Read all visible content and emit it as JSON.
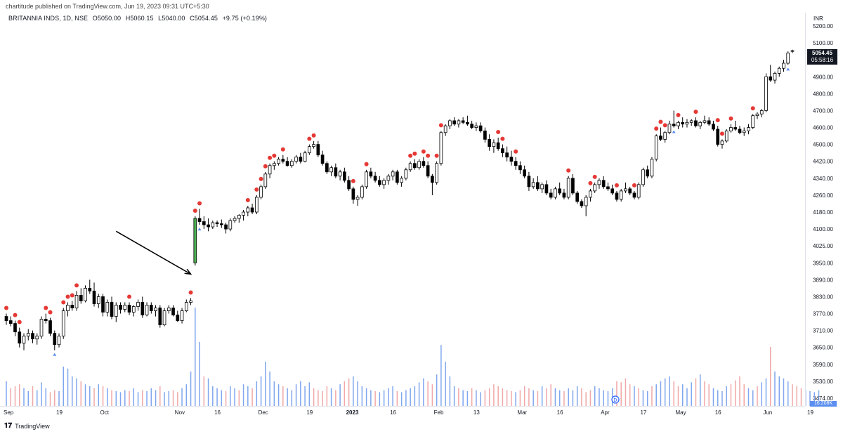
{
  "header": {
    "published": "chartitude published on TradingView.com, Jun 19, 2023 09:31 UTC+5:30",
    "symbol": "BRITANNIA INDS, 1D, NSE",
    "open": "O5050.00",
    "high": "H5060.15",
    "low": "L5040.00",
    "close": "C5054.45",
    "change": "+9.75 (+0.19%)"
  },
  "axis": {
    "currency": "INR",
    "last_price": "5054.45",
    "countdown": "05:58:16",
    "volume_label": "16.208K"
  },
  "event_marker": "D",
  "footer": {
    "brand": "TradingView"
  },
  "colors": {
    "up_body": "#ffffff",
    "down_body": "#000000",
    "highlight": "#4caf50",
    "dot": "#e53935",
    "triangle": "#5b8ef0",
    "vol_up": "#7fa6ee",
    "vol_down": "#f0a8a8"
  },
  "chart_data": {
    "type": "candlestick",
    "title": "",
    "y_ticks": [
      5200.0,
      5100.0,
      5000.0,
      4900.0,
      4800.0,
      4700.0,
      4600.0,
      4500.0,
      4420.0,
      4340.0,
      4260.0,
      4180.0,
      4100.0,
      4025.0,
      3950.0,
      3890.0,
      3830.0,
      3770.0,
      3710.0,
      3650.0,
      3590.0,
      3530.0,
      3474.0
    ],
    "x_ticks": [
      {
        "label": "Sep",
        "i": 0
      },
      {
        "label": "19",
        "i": 12
      },
      {
        "label": "Oct",
        "i": 22
      },
      {
        "label": "Nov",
        "i": 39
      },
      {
        "label": "16",
        "i": 48
      },
      {
        "label": "Dec",
        "i": 58
      },
      {
        "label": "19",
        "i": 69
      },
      {
        "label": "2023",
        "i": 78
      },
      {
        "label": "16",
        "i": 88
      },
      {
        "label": "Feb",
        "i": 98
      },
      {
        "label": "13",
        "i": 107
      },
      {
        "label": "Mar",
        "i": 117
      },
      {
        "label": "16",
        "i": 126
      },
      {
        "label": "Apr",
        "i": 136
      },
      {
        "label": "17",
        "i": 145
      },
      {
        "label": "May",
        "i": 153
      },
      {
        "label": "16",
        "i": 162
      },
      {
        "label": "Jun",
        "i": 173
      },
      {
        "label": "19",
        "i": 183
      }
    ],
    "highlight_index": 43,
    "annotation_arrow": {
      "from_index": 25,
      "from_price": 4090,
      "to_index": 42,
      "to_price": 3910
    },
    "candles": [
      [
        3760,
        3770,
        3730,
        3745
      ],
      [
        3745,
        3760,
        3725,
        3735
      ],
      [
        3735,
        3745,
        3690,
        3705
      ],
      [
        3705,
        3720,
        3650,
        3665
      ],
      [
        3665,
        3700,
        3640,
        3690
      ],
      [
        3690,
        3715,
        3675,
        3700
      ],
      [
        3700,
        3710,
        3665,
        3680
      ],
      [
        3680,
        3700,
        3660,
        3690
      ],
      [
        3690,
        3760,
        3680,
        3750
      ],
      [
        3750,
        3770,
        3735,
        3745
      ],
      [
        3745,
        3755,
        3690,
        3700
      ],
      [
        3700,
        3710,
        3640,
        3660
      ],
      [
        3660,
        3700,
        3650,
        3690
      ],
      [
        3690,
        3790,
        3680,
        3780
      ],
      [
        3780,
        3810,
        3760,
        3800
      ],
      [
        3800,
        3815,
        3780,
        3790
      ],
      [
        3790,
        3850,
        3780,
        3835
      ],
      [
        3835,
        3860,
        3805,
        3815
      ],
      [
        3815,
        3870,
        3810,
        3860
      ],
      [
        3860,
        3890,
        3840,
        3850
      ],
      [
        3850,
        3880,
        3795,
        3805
      ],
      [
        3805,
        3840,
        3790,
        3830
      ],
      [
        3830,
        3840,
        3760,
        3775
      ],
      [
        3775,
        3820,
        3760,
        3810
      ],
      [
        3810,
        3830,
        3750,
        3760
      ],
      [
        3760,
        3810,
        3740,
        3800
      ],
      [
        3800,
        3810,
        3770,
        3785
      ],
      [
        3785,
        3810,
        3775,
        3800
      ],
      [
        3800,
        3810,
        3765,
        3775
      ],
      [
        3775,
        3800,
        3760,
        3795
      ],
      [
        3795,
        3820,
        3780,
        3810
      ],
      [
        3810,
        3830,
        3755,
        3765
      ],
      [
        3765,
        3810,
        3760,
        3800
      ],
      [
        3800,
        3810,
        3770,
        3780
      ],
      [
        3780,
        3800,
        3760,
        3790
      ],
      [
        3790,
        3800,
        3720,
        3730
      ],
      [
        3730,
        3790,
        3725,
        3780
      ],
      [
        3780,
        3800,
        3770,
        3790
      ],
      [
        3790,
        3800,
        3760,
        3765
      ],
      [
        3765,
        3780,
        3740,
        3745
      ],
      [
        3745,
        3790,
        3735,
        3780
      ],
      [
        3780,
        3820,
        3775,
        3810
      ],
      [
        3810,
        3825,
        3800,
        3815
      ],
      [
        3950,
        4160,
        3940,
        4150
      ],
      [
        4150,
        4195,
        4120,
        4135
      ],
      [
        4135,
        4160,
        4100,
        4120
      ],
      [
        4120,
        4150,
        4090,
        4110
      ],
      [
        4110,
        4140,
        4100,
        4130
      ],
      [
        4130,
        4140,
        4110,
        4125
      ],
      [
        4125,
        4145,
        4105,
        4120
      ],
      [
        4120,
        4130,
        4080,
        4100
      ],
      [
        4100,
        4150,
        4090,
        4140
      ],
      [
        4140,
        4160,
        4130,
        4150
      ],
      [
        4150,
        4170,
        4130,
        4165
      ],
      [
        4165,
        4190,
        4140,
        4180
      ],
      [
        4180,
        4210,
        4160,
        4200
      ],
      [
        4200,
        4220,
        4170,
        4180
      ],
      [
        4180,
        4260,
        4170,
        4250
      ],
      [
        4250,
        4310,
        4240,
        4300
      ],
      [
        4300,
        4370,
        4290,
        4360
      ],
      [
        4360,
        4410,
        4340,
        4400
      ],
      [
        4400,
        4420,
        4380,
        4410
      ],
      [
        4410,
        4440,
        4400,
        4430
      ],
      [
        4430,
        4450,
        4410,
        4420
      ],
      [
        4420,
        4440,
        4395,
        4400
      ],
      [
        4400,
        4430,
        4390,
        4420
      ],
      [
        4420,
        4450,
        4410,
        4440
      ],
      [
        4440,
        4460,
        4410,
        4420
      ],
      [
        4420,
        4470,
        4415,
        4460
      ],
      [
        4460,
        4500,
        4450,
        4490
      ],
      [
        4490,
        4520,
        4480,
        4500
      ],
      [
        4500,
        4520,
        4440,
        4450
      ],
      [
        4450,
        4470,
        4400,
        4410
      ],
      [
        4410,
        4420,
        4360,
        4370
      ],
      [
        4370,
        4400,
        4350,
        4390
      ],
      [
        4390,
        4410,
        4340,
        4350
      ],
      [
        4350,
        4380,
        4330,
        4370
      ],
      [
        4370,
        4390,
        4320,
        4330
      ],
      [
        4330,
        4350,
        4280,
        4290
      ],
      [
        4290,
        4300,
        4220,
        4240
      ],
      [
        4240,
        4260,
        4210,
        4250
      ],
      [
        4250,
        4310,
        4240,
        4300
      ],
      [
        4300,
        4380,
        4290,
        4370
      ],
      [
        4370,
        4390,
        4340,
        4350
      ],
      [
        4350,
        4370,
        4320,
        4330
      ],
      [
        4330,
        4350,
        4300,
        4310
      ],
      [
        4310,
        4340,
        4290,
        4330
      ],
      [
        4330,
        4360,
        4310,
        4350
      ],
      [
        4350,
        4380,
        4330,
        4370
      ],
      [
        4370,
        4380,
        4310,
        4320
      ],
      [
        4320,
        4350,
        4300,
        4340
      ],
      [
        4340,
        4390,
        4330,
        4380
      ],
      [
        4380,
        4420,
        4370,
        4410
      ],
      [
        4410,
        4430,
        4380,
        4390
      ],
      [
        4390,
        4430,
        4380,
        4420
      ],
      [
        4420,
        4440,
        4390,
        4400
      ],
      [
        4400,
        4420,
        4340,
        4350
      ],
      [
        4350,
        4360,
        4260,
        4320
      ],
      [
        4320,
        4420,
        4310,
        4410
      ],
      [
        4410,
        4580,
        4400,
        4570
      ],
      [
        4570,
        4620,
        4550,
        4610
      ],
      [
        4610,
        4650,
        4590,
        4640
      ],
      [
        4640,
        4660,
        4610,
        4620
      ],
      [
        4620,
        4650,
        4600,
        4640
      ],
      [
        4640,
        4660,
        4620,
        4630
      ],
      [
        4630,
        4670,
        4610,
        4620
      ],
      [
        4620,
        4640,
        4590,
        4600
      ],
      [
        4600,
        4630,
        4580,
        4610
      ],
      [
        4610,
        4630,
        4570,
        4580
      ],
      [
        4580,
        4600,
        4510,
        4530
      ],
      [
        4530,
        4560,
        4470,
        4490
      ],
      [
        4490,
        4530,
        4460,
        4510
      ],
      [
        4510,
        4540,
        4470,
        4480
      ],
      [
        4480,
        4500,
        4440,
        4460
      ],
      [
        4460,
        4490,
        4420,
        4440
      ],
      [
        4440,
        4470,
        4400,
        4420
      ],
      [
        4420,
        4440,
        4380,
        4400
      ],
      [
        4400,
        4420,
        4360,
        4380
      ],
      [
        4380,
        4400,
        4340,
        4350
      ],
      [
        4350,
        4370,
        4280,
        4300
      ],
      [
        4300,
        4340,
        4290,
        4320
      ],
      [
        4320,
        4350,
        4280,
        4290
      ],
      [
        4290,
        4320,
        4270,
        4310
      ],
      [
        4310,
        4330,
        4260,
        4270
      ],
      [
        4270,
        4290,
        4240,
        4250
      ],
      [
        4250,
        4300,
        4240,
        4290
      ],
      [
        4290,
        4320,
        4260,
        4270
      ],
      [
        4270,
        4290,
        4240,
        4250
      ],
      [
        4250,
        4350,
        4240,
        4340
      ],
      [
        4340,
        4360,
        4260,
        4270
      ],
      [
        4270,
        4280,
        4220,
        4230
      ],
      [
        4230,
        4240,
        4200,
        4210
      ],
      [
        4210,
        4260,
        4160,
        4250
      ],
      [
        4250,
        4290,
        4230,
        4280
      ],
      [
        4280,
        4320,
        4270,
        4310
      ],
      [
        4310,
        4340,
        4290,
        4330
      ],
      [
        4330,
        4350,
        4290,
        4300
      ],
      [
        4300,
        4320,
        4280,
        4290
      ],
      [
        4290,
        4310,
        4260,
        4270
      ],
      [
        4270,
        4280,
        4230,
        4240
      ],
      [
        4240,
        4290,
        4230,
        4280
      ],
      [
        4280,
        4320,
        4270,
        4290
      ],
      [
        4290,
        4300,
        4260,
        4270
      ],
      [
        4270,
        4280,
        4240,
        4250
      ],
      [
        4250,
        4320,
        4240,
        4310
      ],
      [
        4310,
        4390,
        4300,
        4380
      ],
      [
        4380,
        4400,
        4340,
        4350
      ],
      [
        4350,
        4440,
        4340,
        4430
      ],
      [
        4430,
        4560,
        4420,
        4550
      ],
      [
        4550,
        4600,
        4520,
        4530
      ],
      [
        4530,
        4580,
        4510,
        4570
      ],
      [
        4570,
        4640,
        4560,
        4620
      ],
      [
        4620,
        4700,
        4600,
        4610
      ],
      [
        4610,
        4640,
        4590,
        4630
      ],
      [
        4630,
        4660,
        4600,
        4620
      ],
      [
        4620,
        4650,
        4600,
        4630
      ],
      [
        4630,
        4650,
        4610,
        4640
      ],
      [
        4640,
        4660,
        4600,
        4610
      ],
      [
        4610,
        4640,
        4590,
        4630
      ],
      [
        4630,
        4670,
        4620,
        4640
      ],
      [
        4640,
        4660,
        4610,
        4620
      ],
      [
        4620,
        4640,
        4580,
        4590
      ],
      [
        4590,
        4610,
        4490,
        4500
      ],
      [
        4500,
        4530,
        4480,
        4520
      ],
      [
        4520,
        4590,
        4510,
        4580
      ],
      [
        4580,
        4620,
        4570,
        4600
      ],
      [
        4600,
        4640,
        4580,
        4590
      ],
      [
        4590,
        4610,
        4560,
        4570
      ],
      [
        4570,
        4600,
        4550,
        4580
      ],
      [
        4580,
        4620,
        4560,
        4600
      ],
      [
        4600,
        4680,
        4590,
        4670
      ],
      [
        4670,
        4690,
        4650,
        4680
      ],
      [
        4680,
        4710,
        4660,
        4700
      ],
      [
        4700,
        4920,
        4690,
        4900
      ],
      [
        4900,
        4970,
        4870,
        4880
      ],
      [
        4880,
        4930,
        4860,
        4920
      ],
      [
        4920,
        4960,
        4900,
        4950
      ],
      [
        4950,
        5000,
        4930,
        4980
      ],
      [
        4980,
        5050,
        4970,
        5040
      ],
      [
        5050,
        5060,
        5040,
        5054
      ]
    ],
    "red_dots": [
      0,
      2,
      3,
      9,
      10,
      13,
      14,
      15,
      16,
      28,
      42,
      43,
      44,
      55,
      57,
      58,
      59,
      60,
      61,
      63,
      69,
      70,
      79,
      82,
      92,
      93,
      95,
      96,
      98,
      99,
      112,
      113,
      116,
      128,
      133,
      134,
      139,
      143,
      148,
      149,
      150,
      153,
      157,
      162,
      163,
      165,
      170
    ],
    "triangles": [
      11,
      44,
      152,
      178
    ],
    "volumes": [
      25,
      18,
      20,
      22,
      18,
      15,
      20,
      16,
      24,
      18,
      14,
      16,
      15,
      40,
      38,
      30,
      28,
      25,
      22,
      20,
      18,
      22,
      20,
      18,
      16,
      15,
      14,
      16,
      15,
      18,
      14,
      16,
      15,
      18,
      16,
      20,
      14,
      15,
      16,
      14,
      18,
      22,
      35,
      100,
      65,
      30,
      28,
      20,
      18,
      16,
      15,
      20,
      18,
      16,
      22,
      20,
      18,
      25,
      30,
      45,
      35,
      25,
      22,
      20,
      18,
      16,
      22,
      25,
      20,
      24,
      18,
      16,
      15,
      20,
      18,
      16,
      22,
      25,
      28,
      30,
      25,
      20,
      18,
      16,
      15,
      14,
      16,
      18,
      20,
      15,
      14,
      16,
      18,
      20,
      24,
      28,
      25,
      22,
      32,
      62,
      45,
      30,
      20,
      18,
      16,
      15,
      18,
      16,
      14,
      16,
      18,
      22,
      20,
      18,
      16,
      15,
      14,
      16,
      20,
      18,
      16,
      15,
      20,
      18,
      22,
      18,
      16,
      15,
      18,
      16,
      20,
      18,
      14,
      16,
      20,
      18,
      16,
      15,
      18,
      25,
      24,
      28,
      22,
      20,
      18,
      16,
      15,
      20,
      22,
      25,
      28,
      30,
      25,
      20,
      22,
      18,
      24,
      28,
      32,
      25,
      22,
      18,
      16,
      15,
      20,
      22,
      26,
      30,
      22,
      18,
      16,
      20,
      24,
      28,
      60,
      35,
      30,
      28,
      25,
      22,
      20,
      18,
      16,
      15,
      14,
      16
    ],
    "vol_down": [
      1,
      2,
      3,
      6,
      10,
      11,
      17,
      20,
      22,
      24,
      28,
      31,
      35,
      38,
      39,
      45,
      50,
      53,
      56,
      63,
      70,
      71,
      72,
      73,
      75,
      77,
      78,
      84,
      89,
      96,
      97,
      103,
      106,
      109,
      110,
      111,
      112,
      113,
      114,
      115,
      117,
      118,
      119,
      121,
      123,
      124,
      127,
      131,
      132,
      133,
      139,
      140,
      141,
      142,
      144,
      147,
      152,
      153,
      157,
      159,
      160,
      165,
      166,
      167,
      168,
      171,
      174,
      179,
      180,
      181
    ]
  }
}
